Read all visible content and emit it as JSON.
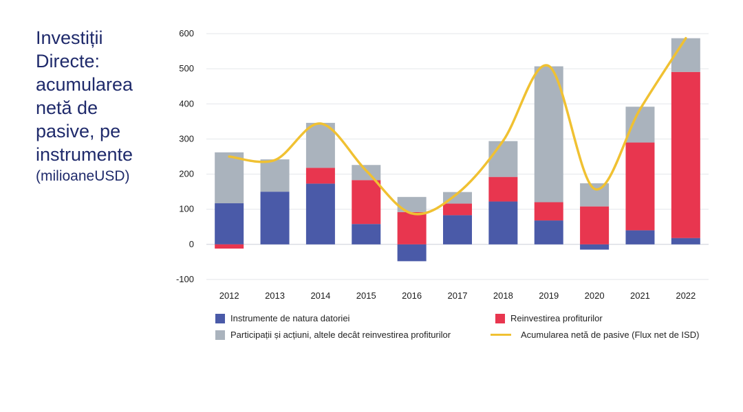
{
  "title_lines": [
    "Investiții",
    "Directe:",
    "acumularea",
    "netă de",
    "pasive, pe",
    "instrumente"
  ],
  "subtitle": "(milioaneUSD)",
  "chart_data": {
    "type": "bar",
    "stacked": true,
    "categories": [
      "2012",
      "2013",
      "2014",
      "2015",
      "2016",
      "2017",
      "2018",
      "2019",
      "2020",
      "2021",
      "2022"
    ],
    "ylim": [
      -100,
      600
    ],
    "yticks": [
      -100,
      0,
      100,
      200,
      300,
      400,
      500,
      600
    ],
    "grid": true,
    "legend_position": "bottom",
    "series": [
      {
        "name": "Instrumente de natura datoriei",
        "kind": "bar",
        "color": "#4a5aa8",
        "values": [
          117,
          150,
          173,
          58,
          -48,
          83,
          122,
          68,
          -15,
          40,
          18
        ]
      },
      {
        "name": "Reinvestirea profiturilor",
        "kind": "bar",
        "color": "#e8364f",
        "values": [
          -12,
          0,
          45,
          125,
          92,
          33,
          70,
          52,
          108,
          250,
          473
        ]
      },
      {
        "name": "Participații și acțiuni, altele decât reinvestirea profiturilor",
        "kind": "bar",
        "color": "#aab3bd",
        "values": [
          145,
          92,
          128,
          43,
          43,
          33,
          102,
          387,
          66,
          102,
          96
        ]
      },
      {
        "name": "Acumularea netă de pasive (Flux net de ISD)",
        "kind": "line",
        "color": "#f0c132",
        "values": [
          250,
          240,
          344,
          210,
          88,
          145,
          295,
          508,
          158,
          385,
          587
        ]
      }
    ]
  }
}
